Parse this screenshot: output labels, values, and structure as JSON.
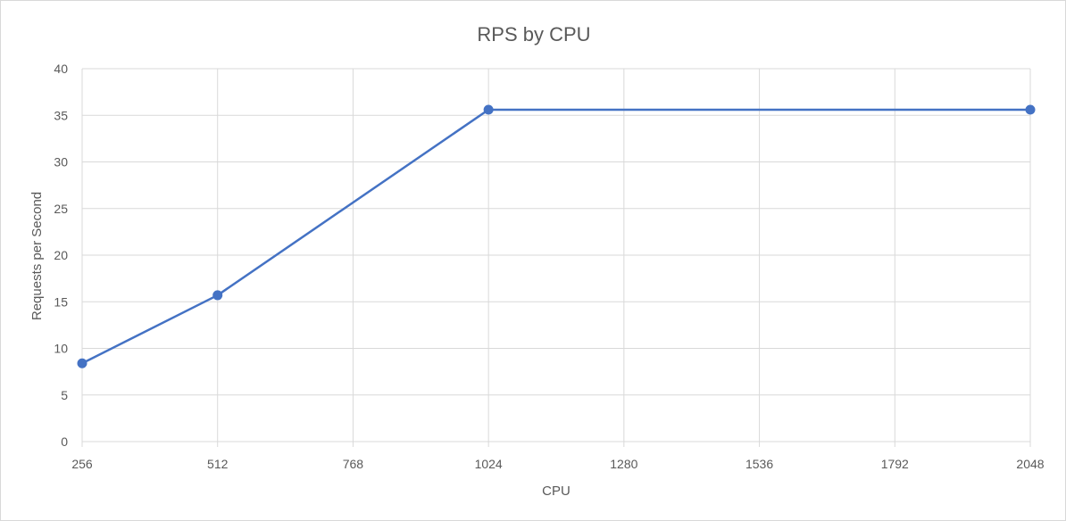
{
  "chart_data": {
    "type": "line",
    "title": "RPS by CPU",
    "xlabel": "CPU",
    "ylabel": "Requests per Second",
    "x": [
      256,
      512,
      1024,
      2048
    ],
    "series": [
      {
        "values": [
          8.4,
          15.7,
          35.6,
          35.6
        ],
        "color": "#4472c4"
      }
    ],
    "xlim": [
      256,
      2048
    ],
    "ylim": [
      0,
      40
    ],
    "x_ticks": [
      "256",
      "512",
      "768",
      "1024",
      "1280",
      "1536",
      "1792",
      "2048"
    ],
    "y_ticks": [
      "0",
      "5",
      "10",
      "15",
      "20",
      "25",
      "30",
      "35",
      "40"
    ],
    "grid": true,
    "legend": "none",
    "gridline_color": "#d9d9d9",
    "axis_text_color": "#595959"
  }
}
